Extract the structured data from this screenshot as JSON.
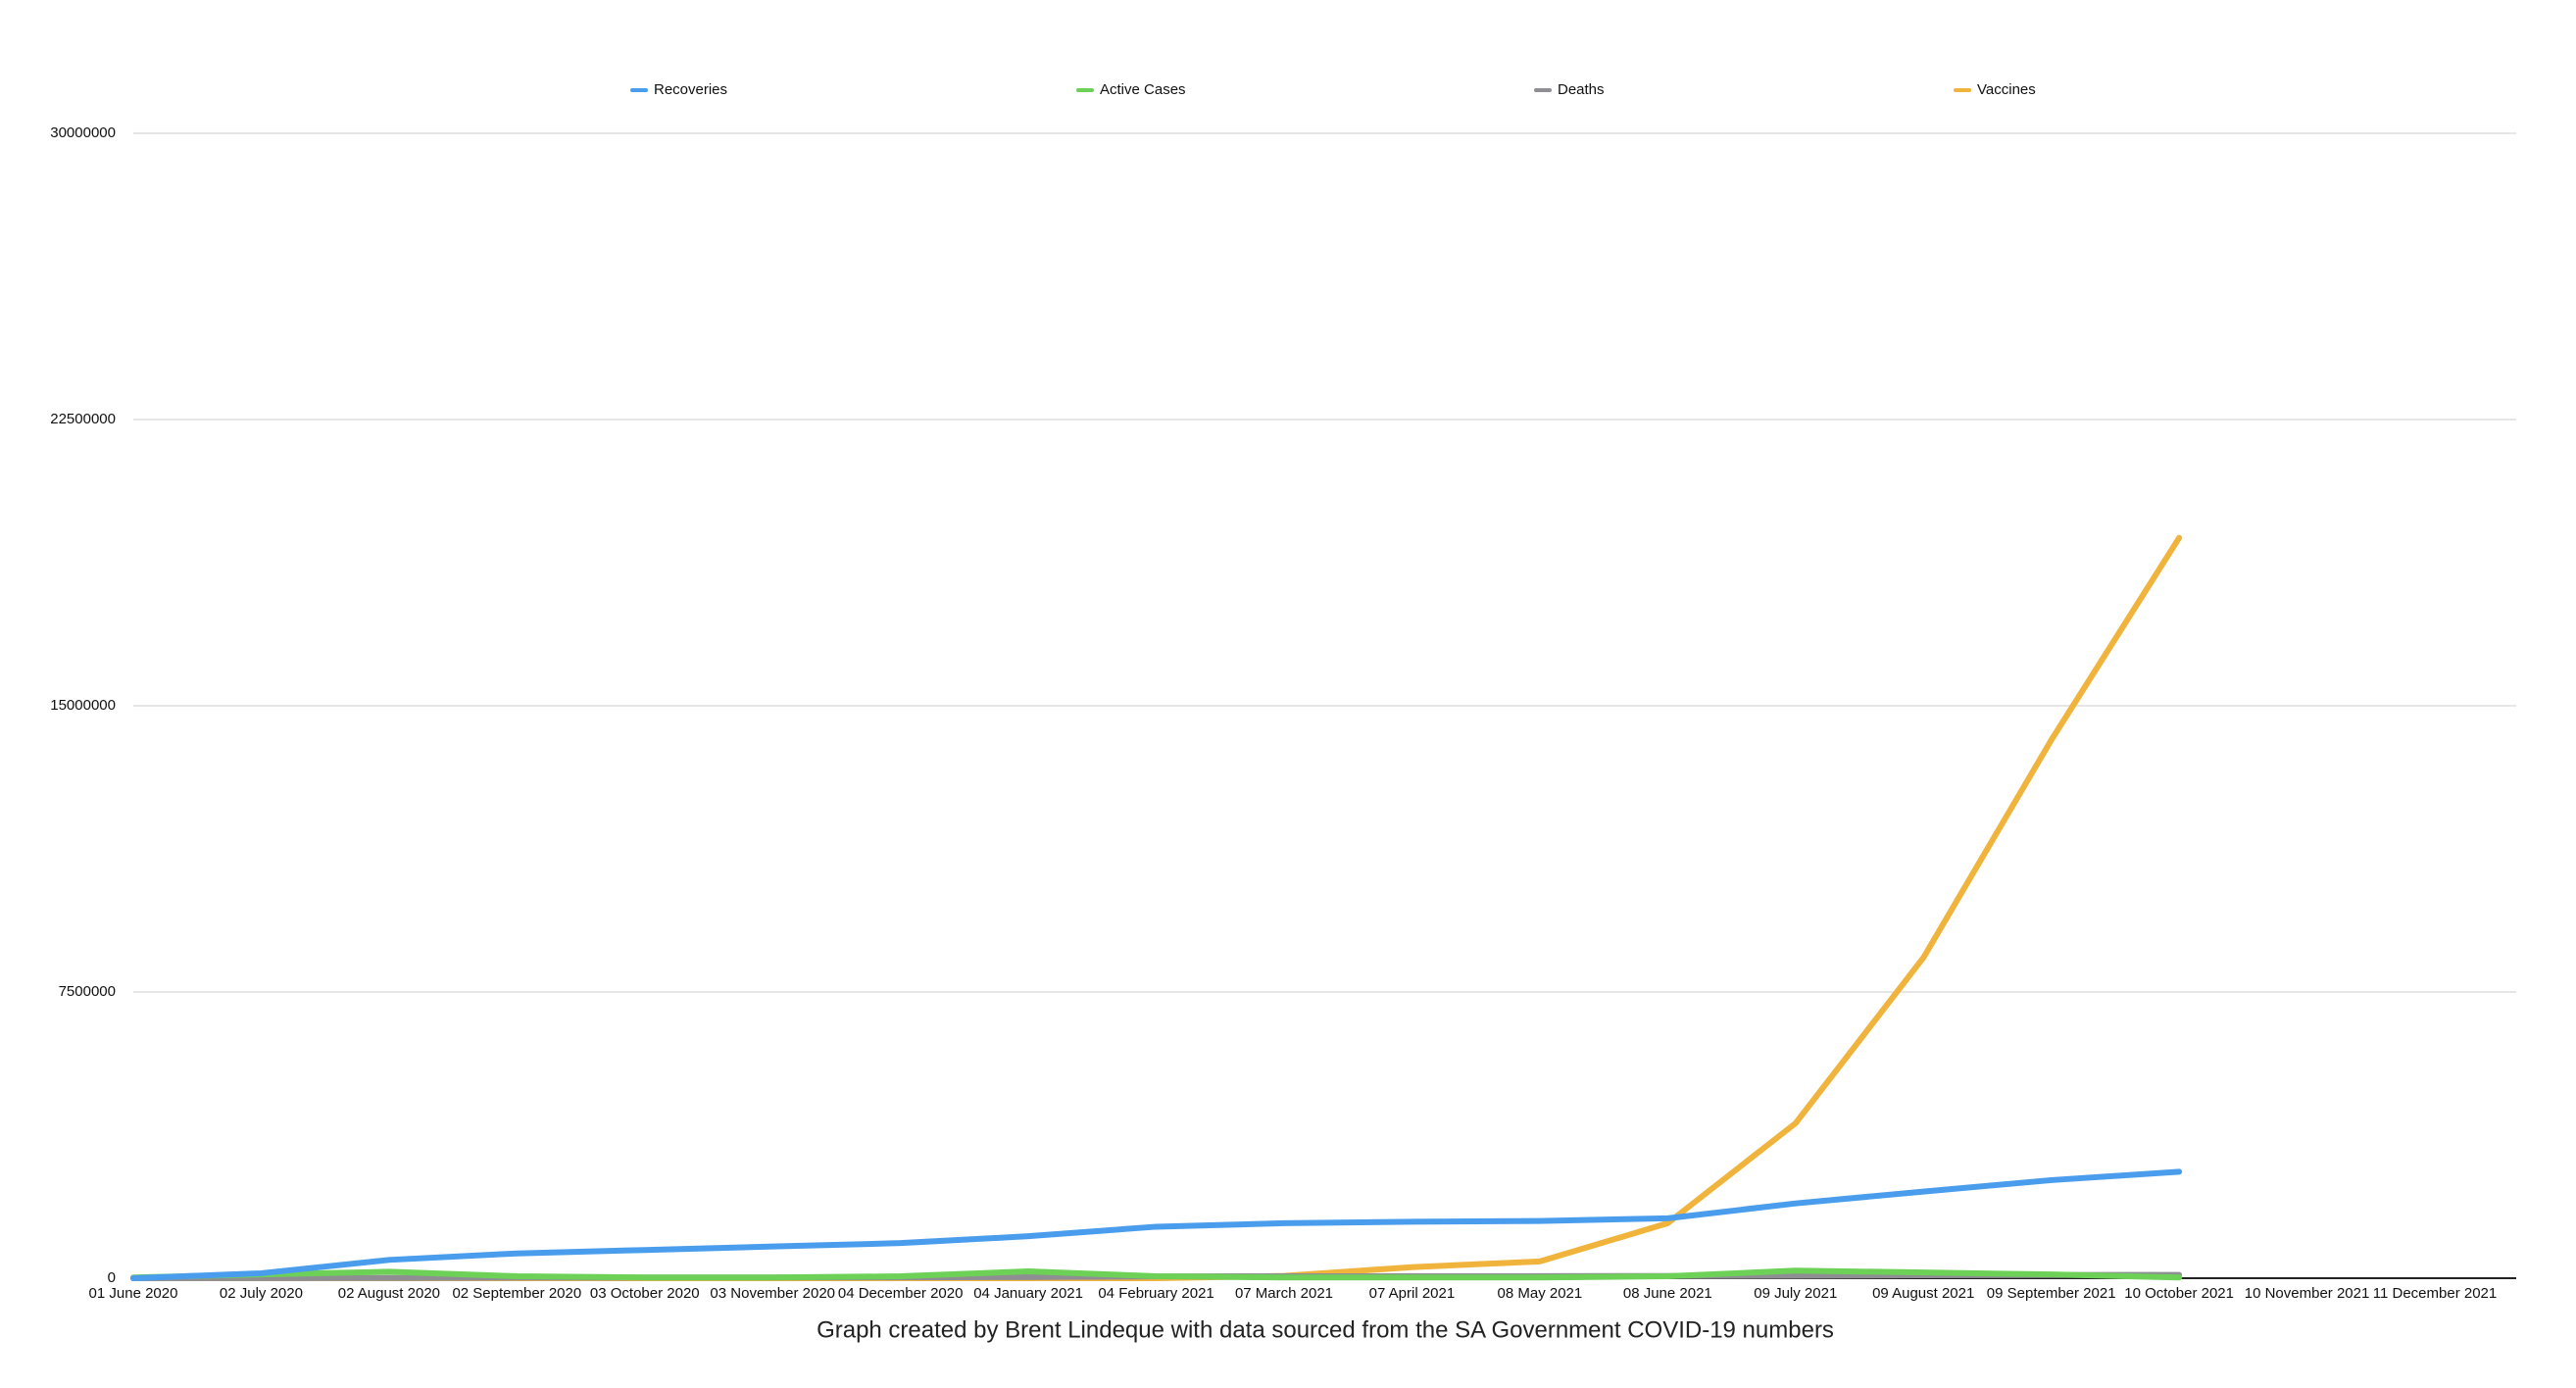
{
  "chart_data": {
    "type": "line",
    "caption": "Graph created by Brent Lindeque with data sourced from the SA Government COVID-19 numbers",
    "categories": [
      "01 June 2020",
      "02 July 2020",
      "02 August 2020",
      "02 September 2020",
      "03 October 2020",
      "03 November 2020",
      "04 December 2020",
      "04 January 2021",
      "04 February 2021",
      "07 March 2021",
      "07 April 2021",
      "08 May 2021",
      "08 June 2021",
      "09 July 2021",
      "09 August 2021",
      "09 September 2021",
      "10 October 2021",
      "10 November 2021",
      "11 December 2021"
    ],
    "series": [
      {
        "name": "Recoveries",
        "color": "#4a9ded",
        "values": [
          0,
          130000,
          480000,
          650000,
          740000,
          830000,
          920000,
          1100000,
          1350000,
          1440000,
          1480000,
          1500000,
          1570000,
          1960000,
          2270000,
          2570000,
          2790000,
          null,
          null
        ]
      },
      {
        "name": "Active Cases",
        "color": "#6dd158",
        "values": [
          20000,
          100000,
          170000,
          50000,
          20000,
          20000,
          50000,
          180000,
          50000,
          20000,
          20000,
          20000,
          50000,
          200000,
          150000,
          100000,
          20000,
          null,
          null
        ]
      },
      {
        "name": "Deaths",
        "color": "#8e8e93",
        "values": [
          0,
          2000,
          8000,
          15000,
          18000,
          20000,
          23000,
          30000,
          47000,
          51000,
          53000,
          55000,
          58000,
          63000,
          76000,
          85000,
          88000,
          null,
          null
        ]
      },
      {
        "name": "Vaccines",
        "color": "#f0b43c",
        "values": [
          0,
          0,
          0,
          0,
          0,
          0,
          0,
          0,
          0,
          60000,
          290000,
          440000,
          1440000,
          4060000,
          8400000,
          14100000,
          19400000,
          null,
          null
        ]
      }
    ],
    "ylim": [
      0,
      30000000
    ],
    "yticks": [
      0,
      7500000,
      15000000,
      22500000,
      30000000
    ],
    "grid": true
  }
}
